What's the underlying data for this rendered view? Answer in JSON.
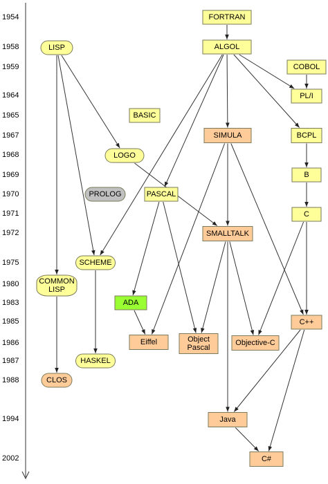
{
  "timeline": [
    "1954",
    "1958",
    "1959",
    "1964",
    "1965",
    "1967",
    "1968",
    "1969",
    "1970",
    "1971",
    "1972",
    "1975",
    "1980",
    "1983",
    "1985",
    "1986",
    "1987",
    "1988",
    "1994",
    "2002"
  ],
  "nodes": [
    {
      "lines": [
        "FORTRAN"
      ]
    },
    {
      "lines": [
        "ALGOL"
      ]
    },
    {
      "lines": [
        "COBOL"
      ]
    },
    {
      "lines": [
        "PL/I"
      ]
    },
    {
      "lines": [
        "LISP"
      ]
    },
    {
      "lines": [
        "BASIC"
      ]
    },
    {
      "lines": [
        "SIMULA"
      ]
    },
    {
      "lines": [
        "BCPL"
      ]
    },
    {
      "lines": [
        "LOGO"
      ]
    },
    {
      "lines": [
        "B"
      ]
    },
    {
      "lines": [
        "PROLOG"
      ]
    },
    {
      "lines": [
        "PASCAL"
      ]
    },
    {
      "lines": [
        "C"
      ]
    },
    {
      "lines": [
        "SMALLTALK"
      ]
    },
    {
      "lines": [
        "SCHEME"
      ]
    },
    {
      "lines": [
        "COMMON",
        "LISP"
      ]
    },
    {
      "lines": [
        "ADA"
      ]
    },
    {
      "lines": [
        "C++"
      ]
    },
    {
      "lines": [
        "Eiffel"
      ]
    },
    {
      "lines": [
        "Object",
        "Pascal"
      ]
    },
    {
      "lines": [
        "Objective-C"
      ]
    },
    {
      "lines": [
        "HASKEL"
      ]
    },
    {
      "lines": [
        "CLOS"
      ]
    },
    {
      "lines": [
        "Java"
      ]
    },
    {
      "lines": [
        "C#"
      ]
    }
  ]
}
